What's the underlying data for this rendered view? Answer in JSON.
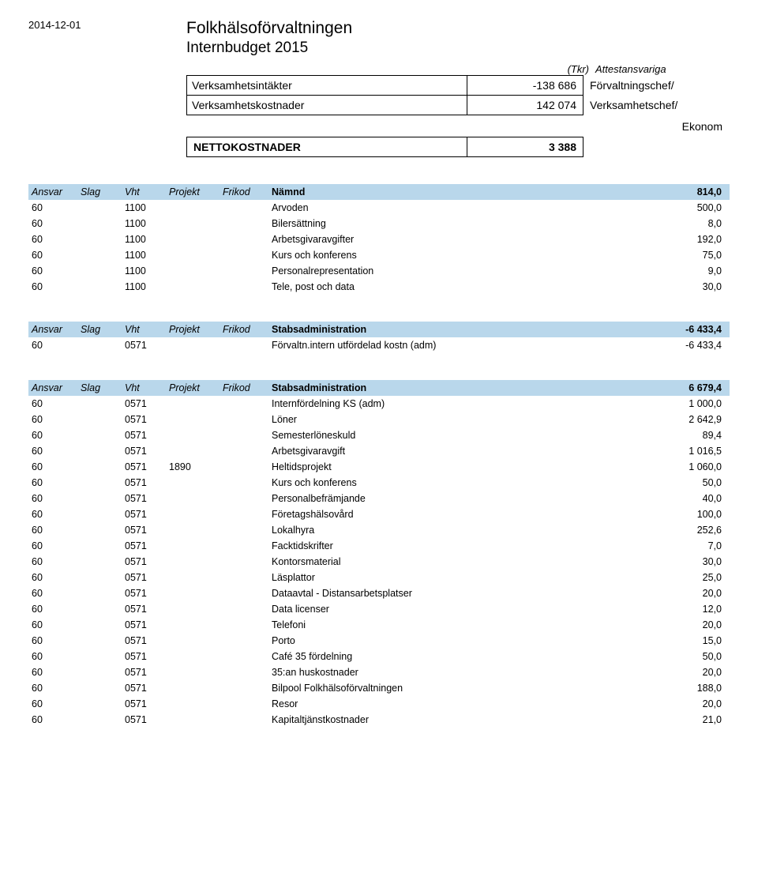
{
  "date": "2014-12-01",
  "title1": "Folkhälsoförvaltningen",
  "title2": "Internbudget 2015",
  "tkr_label": "(Tkr)",
  "attest_label": "Attestansvariga",
  "summary": {
    "r1": {
      "label": "Verksamhetsintäkter",
      "value": "-138 686",
      "role": "Förvaltningschef/"
    },
    "r2": {
      "label": "Verksamhetskostnader",
      "value": "142 074",
      "role": "Verksamhetschef/"
    },
    "ekonom": "Ekonom",
    "netto": {
      "label": "NETTOKOSTNADER",
      "value": "3 388"
    }
  },
  "columns": {
    "c1": "Ansvar",
    "c2": "Slag",
    "c3": "Vht",
    "c4": "Projekt",
    "c5": "Frikod"
  },
  "blocks": [
    {
      "heading": {
        "label": "Nämnd",
        "value": "814,0"
      },
      "rows": [
        {
          "c1": "60",
          "c2": "",
          "c3": "1100",
          "c4": "",
          "c5": "",
          "desc": "Arvoden",
          "val": "500,0"
        },
        {
          "c1": "60",
          "c2": "",
          "c3": "1100",
          "c4": "",
          "c5": "",
          "desc": "Bilersättning",
          "val": "8,0"
        },
        {
          "c1": "60",
          "c2": "",
          "c3": "1100",
          "c4": "",
          "c5": "",
          "desc": "Arbetsgivaravgifter",
          "val": "192,0"
        },
        {
          "c1": "60",
          "c2": "",
          "c3": "1100",
          "c4": "",
          "c5": "",
          "desc": "Kurs och konferens",
          "val": "75,0"
        },
        {
          "c1": "60",
          "c2": "",
          "c3": "1100",
          "c4": "",
          "c5": "",
          "desc": "Personalrepresentation",
          "val": "9,0"
        },
        {
          "c1": "60",
          "c2": "",
          "c3": "1100",
          "c4": "",
          "c5": "",
          "desc": "Tele, post och data",
          "val": "30,0"
        }
      ]
    },
    {
      "heading": {
        "label": "Stabsadministration",
        "value": "-6 433,4"
      },
      "rows": [
        {
          "c1": "60",
          "c2": "",
          "c3": "0571",
          "c4": "",
          "c5": "",
          "desc": "Förvaltn.intern utfördelad kostn (adm)",
          "val": "-6 433,4"
        }
      ]
    },
    {
      "heading": {
        "label": "Stabsadministration",
        "value": "6 679,4"
      },
      "rows": [
        {
          "c1": "60",
          "c2": "",
          "c3": "0571",
          "c4": "",
          "c5": "",
          "desc": "Internfördelning KS (adm)",
          "val": "1 000,0"
        },
        {
          "c1": "60",
          "c2": "",
          "c3": "0571",
          "c4": "",
          "c5": "",
          "desc": "Löner",
          "val": "2 642,9"
        },
        {
          "c1": "60",
          "c2": "",
          "c3": "0571",
          "c4": "",
          "c5": "",
          "desc": "Semesterlöneskuld",
          "val": "89,4"
        },
        {
          "c1": "60",
          "c2": "",
          "c3": "0571",
          "c4": "",
          "c5": "",
          "desc": "Arbetsgivaravgift",
          "val": "1 016,5"
        },
        {
          "c1": "60",
          "c2": "",
          "c3": "0571",
          "c4": "1890",
          "c5": "",
          "desc": "Heltidsprojekt",
          "val": "1 060,0"
        },
        {
          "c1": "60",
          "c2": "",
          "c3": "0571",
          "c4": "",
          "c5": "",
          "desc": "Kurs och konferens",
          "val": "50,0"
        },
        {
          "c1": "60",
          "c2": "",
          "c3": "0571",
          "c4": "",
          "c5": "",
          "desc": "Personalbefrämjande",
          "val": "40,0"
        },
        {
          "c1": "60",
          "c2": "",
          "c3": "0571",
          "c4": "",
          "c5": "",
          "desc": "Företagshälsovård",
          "val": "100,0"
        },
        {
          "c1": "60",
          "c2": "",
          "c3": "0571",
          "c4": "",
          "c5": "",
          "desc": "Lokalhyra",
          "val": "252,6"
        },
        {
          "c1": "60",
          "c2": "",
          "c3": "0571",
          "c4": "",
          "c5": "",
          "desc": "Facktidskrifter",
          "val": "7,0"
        },
        {
          "c1": "60",
          "c2": "",
          "c3": "0571",
          "c4": "",
          "c5": "",
          "desc": "Kontorsmaterial",
          "val": "30,0"
        },
        {
          "c1": "60",
          "c2": "",
          "c3": "0571",
          "c4": "",
          "c5": "",
          "desc": "Läsplattor",
          "val": "25,0"
        },
        {
          "c1": "60",
          "c2": "",
          "c3": "0571",
          "c4": "",
          "c5": "",
          "desc": "Dataavtal - Distansarbetsplatser",
          "val": "20,0"
        },
        {
          "c1": "60",
          "c2": "",
          "c3": "0571",
          "c4": "",
          "c5": "",
          "desc": "Data licenser",
          "val": "12,0"
        },
        {
          "c1": "60",
          "c2": "",
          "c3": "0571",
          "c4": "",
          "c5": "",
          "desc": "Telefoni",
          "val": "20,0"
        },
        {
          "c1": "60",
          "c2": "",
          "c3": "0571",
          "c4": "",
          "c5": "",
          "desc": "Porto",
          "val": "15,0"
        },
        {
          "c1": "60",
          "c2": "",
          "c3": "0571",
          "c4": "",
          "c5": "",
          "desc": "Café 35 fördelning",
          "val": "50,0"
        },
        {
          "c1": "60",
          "c2": "",
          "c3": "0571",
          "c4": "",
          "c5": "",
          "desc": "35:an huskostnader",
          "val": "20,0"
        },
        {
          "c1": "60",
          "c2": "",
          "c3": "0571",
          "c4": "",
          "c5": "",
          "desc": "Bilpool Folkhälsoförvaltningen",
          "val": "188,0"
        },
        {
          "c1": "60",
          "c2": "",
          "c3": "0571",
          "c4": "",
          "c5": "",
          "desc": "Resor",
          "val": "20,0"
        },
        {
          "c1": "60",
          "c2": "",
          "c3": "0571",
          "c4": "",
          "c5": "",
          "desc": "Kapitaltjänstkostnader",
          "val": "21,0"
        }
      ]
    }
  ],
  "styling": {
    "band_color": "#b9d7eb",
    "font_family": "Verdana",
    "base_font_size_pt": 10,
    "title_font_size_pt": 16
  }
}
